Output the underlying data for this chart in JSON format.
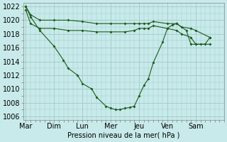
{
  "xlabel": "Pression niveau de la mer( hPa )",
  "bg_color": "#c8eaea",
  "grid_color": "#a0c8c8",
  "line_color": "#1a5c1a",
  "ylim": [
    1005.5,
    1022.5
  ],
  "yticks": [
    1006,
    1008,
    1010,
    1012,
    1014,
    1016,
    1018,
    1020,
    1022
  ],
  "xtick_positions": [
    0,
    1,
    2,
    3,
    4,
    5,
    6
  ],
  "xtick_labels": [
    "Mar",
    "Dim",
    "Lun",
    "Mer",
    "Jeu",
    "Ven",
    "Sam"
  ],
  "font_size": 7,
  "series": [
    {
      "x": [
        0,
        0.17,
        0.5,
        1.0,
        1.5,
        2.0,
        2.5,
        3.0,
        3.5,
        3.83,
        4.0,
        4.17,
        4.33,
        4.5,
        5.0,
        5.33,
        5.5,
        5.83,
        6.0,
        6.5
      ],
      "y": [
        1022,
        1020.8,
        1020.0,
        1020.0,
        1020.0,
        1019.8,
        1019.5,
        1019.5,
        1019.5,
        1019.5,
        1019.5,
        1019.5,
        1019.5,
        1019.8,
        1019.5,
        1019.5,
        1019.0,
        1018.8,
        1018.5,
        1017.5
      ]
    },
    {
      "x": [
        0,
        0.17,
        0.5,
        1.0,
        1.5,
        2.0,
        2.5,
        3.0,
        3.5,
        3.83,
        4.0,
        4.17,
        4.33,
        4.5,
        5.0,
        5.33,
        5.5,
        5.83,
        6.0,
        6.5
      ],
      "y": [
        1021.5,
        1019.5,
        1018.8,
        1018.8,
        1018.5,
        1018.5,
        1018.3,
        1018.3,
        1018.3,
        1018.5,
        1018.8,
        1018.8,
        1018.8,
        1019.2,
        1018.8,
        1018.5,
        1018.0,
        1017.5,
        1016.5,
        1016.5
      ]
    },
    {
      "x": [
        0,
        0.17,
        0.5,
        1.0,
        1.33,
        1.5,
        1.83,
        2.0,
        2.33,
        2.5,
        2.83,
        3.0,
        3.17,
        3.33,
        3.5,
        3.67,
        3.83,
        4.0,
        4.17,
        4.33,
        4.5,
        4.83,
        5.0,
        5.17,
        5.33,
        5.67,
        5.83,
        6.0,
        6.17,
        6.33,
        6.5
      ],
      "y": [
        1022,
        1020.5,
        1018.5,
        1016.2,
        1014.2,
        1013.0,
        1012.0,
        1010.8,
        1010.0,
        1008.8,
        1007.5,
        1007.2,
        1007.0,
        1007.0,
        1007.2,
        1007.3,
        1007.5,
        1009.0,
        1010.5,
        1011.5,
        1013.8,
        1016.8,
        1018.8,
        1019.3,
        1019.5,
        1018.5,
        1016.5,
        1016.5,
        1016.5,
        1016.5,
        1017.5
      ]
    }
  ]
}
